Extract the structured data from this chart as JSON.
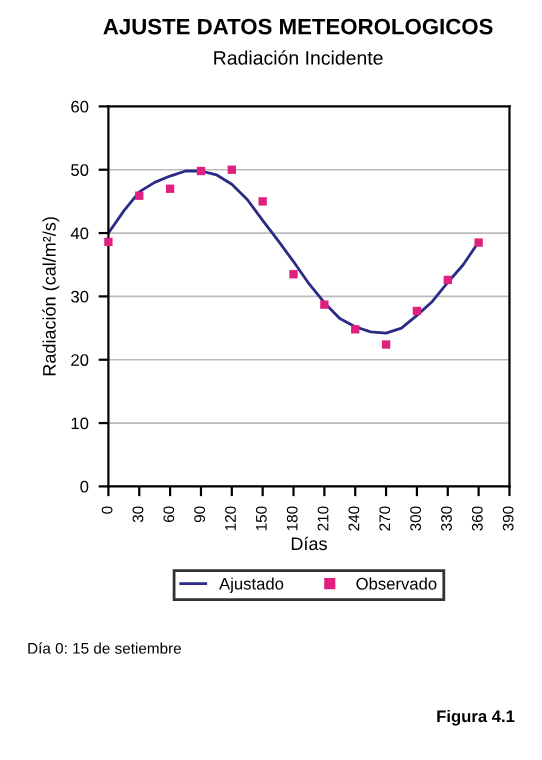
{
  "chart_data": {
    "type": "line",
    "title": "AJUSTE DATOS METEOROLOGICOS",
    "subtitle": "Radiación Incidente",
    "xlabel": "Días",
    "ylabel": "Radiación (cal/m²/s)",
    "annotations": [
      "Día 0: 15 de setiembre",
      "Figura 4.1"
    ],
    "series": [
      {
        "name": "Ajustado",
        "color": "#2b2b86",
        "marker": "none",
        "x": [
          0,
          15,
          30,
          45,
          60,
          75,
          90,
          105,
          120,
          135,
          150,
          165,
          180,
          195,
          210,
          225,
          240,
          255,
          270,
          285,
          300,
          315,
          330,
          345,
          360
        ],
        "values": [
          40,
          43.5,
          46.5,
          48,
          49,
          49.8,
          49.8,
          49.2,
          47.7,
          45.3,
          42,
          38.8,
          35.5,
          32,
          29,
          26.5,
          25.2,
          24.4,
          24.2,
          25,
          27,
          29.2,
          32.2,
          35,
          38.6
        ]
      },
      {
        "name": "Observado",
        "type": "scatter",
        "color": "#e0207f",
        "marker": "square",
        "x": [
          0,
          30,
          60,
          90,
          120,
          150,
          180,
          210,
          240,
          270,
          300,
          330,
          360
        ],
        "values": [
          38.6,
          45.9,
          47,
          49.8,
          50,
          45,
          33.5,
          28.7,
          24.8,
          22.4,
          27.7,
          32.6,
          38.5
        ]
      }
    ],
    "xlim": [
      0,
      390
    ],
    "xticks": [
      0,
      30,
      60,
      90,
      120,
      150,
      180,
      210,
      240,
      270,
      300,
      330,
      360,
      390
    ],
    "ylim": [
      0,
      60
    ],
    "yticks": [
      0,
      10,
      20,
      30,
      40,
      50,
      60
    ],
    "grid": "y",
    "legend": "bottom"
  }
}
